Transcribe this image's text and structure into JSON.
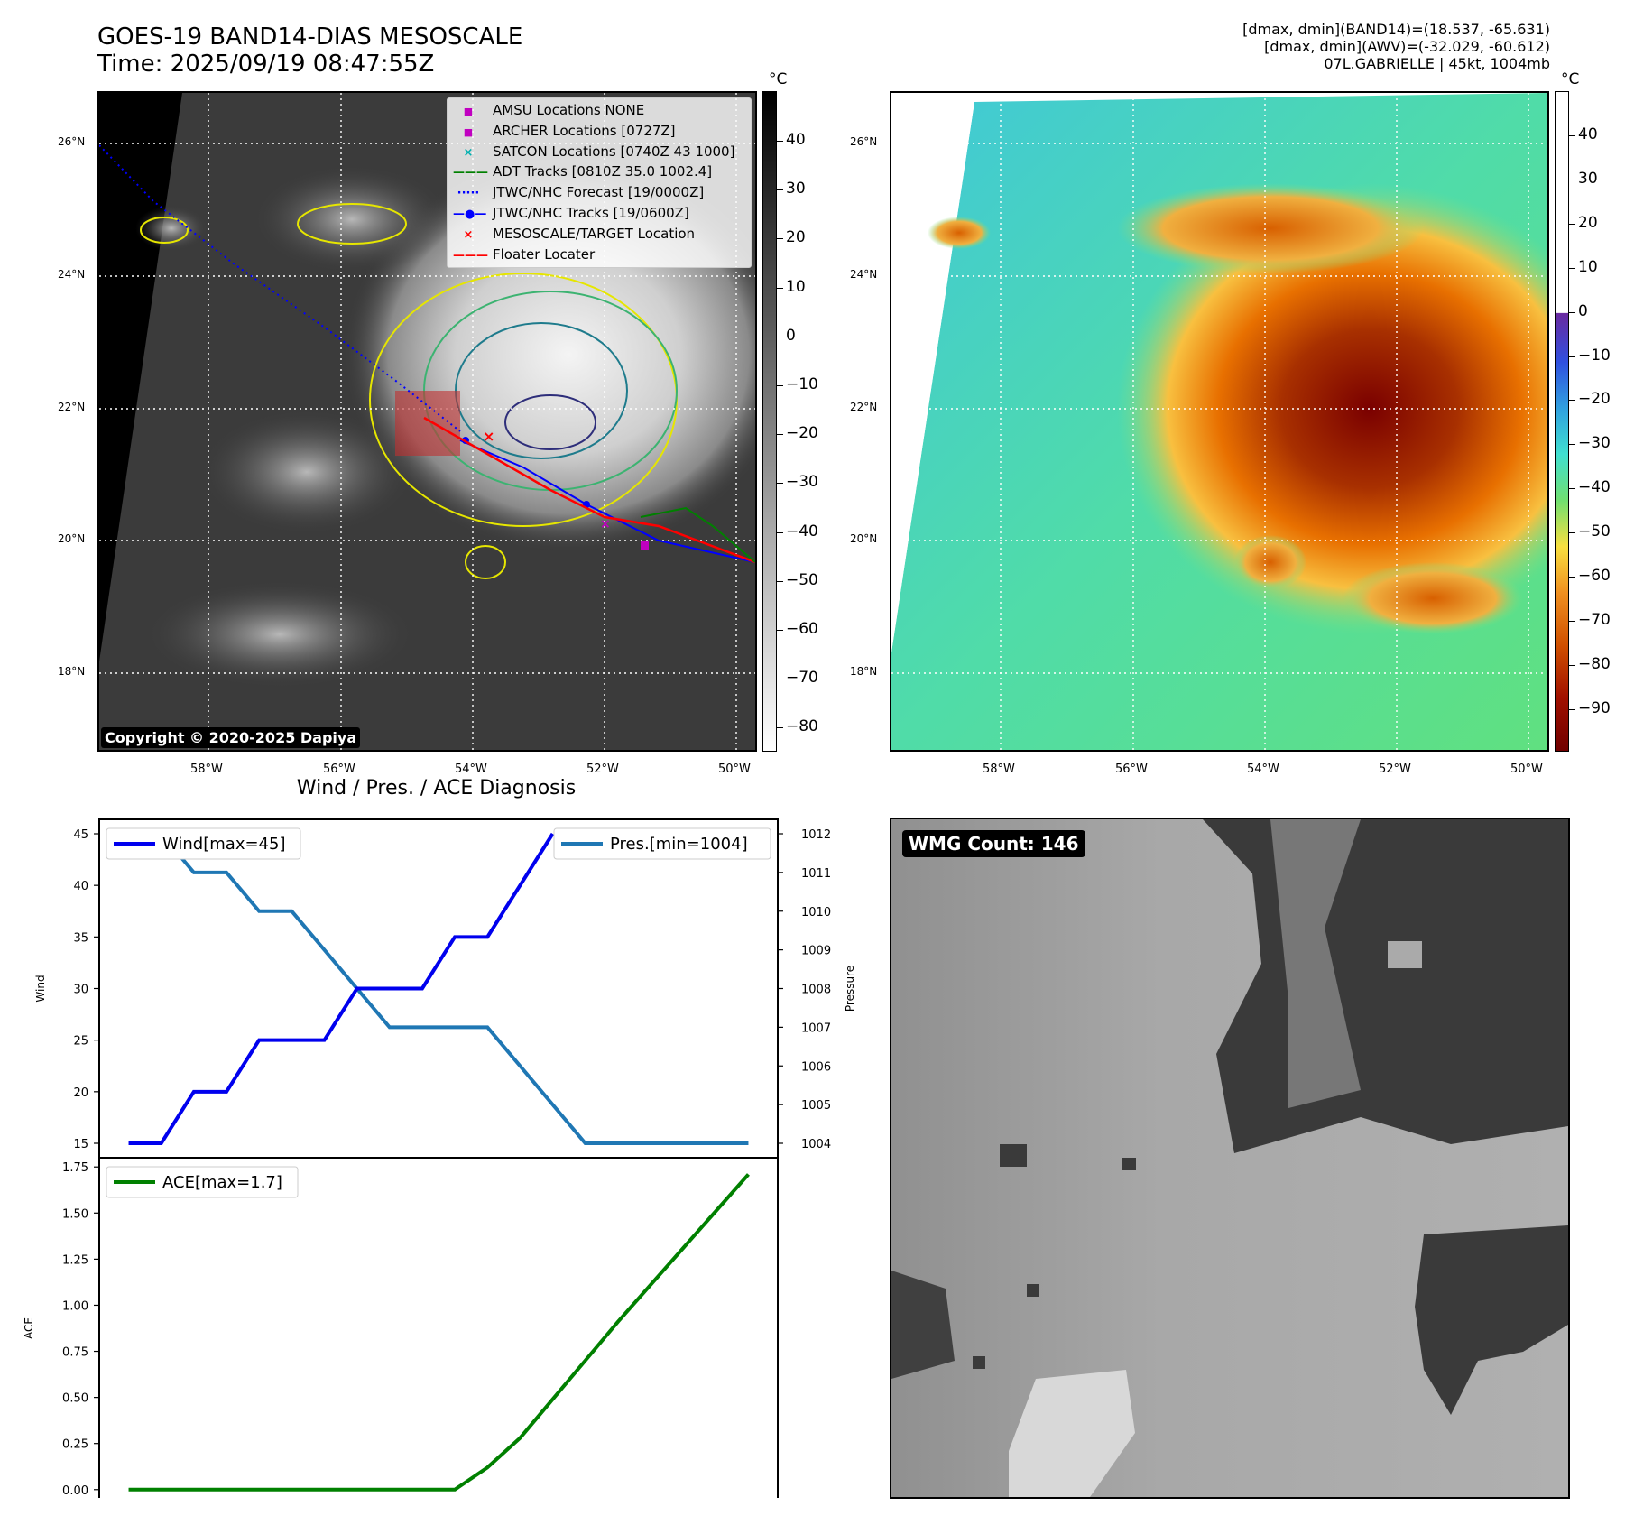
{
  "header": {
    "title_line1": "GOES-19 BAND14-DIAS MESOSCALE",
    "title_line2": "Time: 2025/09/19 08:47:55Z",
    "right_line1": "[dmax, dmin](BAND14)=(18.537, -65.631)",
    "right_line2": "[dmax, dmin](AWV)=(-32.029, -60.612)",
    "right_line3": "07L.GABRIELLE | 45kt, 1004mb"
  },
  "map_common": {
    "lat_labels": [
      "26°N",
      "24°N",
      "22°N",
      "20°N",
      "18°N"
    ],
    "lon_labels": [
      "58°W",
      "56°W",
      "54°W",
      "52°W",
      "50°W"
    ],
    "unit": "°C"
  },
  "ir_panel": {
    "colorbar_ticks": [
      "40",
      "30",
      "20",
      "10",
      "0",
      "−10",
      "−20",
      "−30",
      "−40",
      "−50",
      "−60",
      "−70",
      "−80"
    ],
    "copyright": "Copyright © 2020-2025 Dapiya",
    "legend": [
      {
        "label": "AMSU Locations NONE",
        "color": "#c000c0",
        "marker": "square"
      },
      {
        "label": "ARCHER Locations [0727Z]",
        "color": "#c000c0",
        "marker": "square"
      },
      {
        "label": "SATCON Locations [0740Z 43 1000]",
        "color": "#00b0b0",
        "marker": "x"
      },
      {
        "label": "ADT Tracks [0810Z 35.0 1002.4]",
        "color": "#008000",
        "marker": "line"
      },
      {
        "label": "JTWC/NHC Forecast [19/0000Z]",
        "color": "#0000ff",
        "marker": "dotted"
      },
      {
        "label": "JTWC/NHC Tracks [19/0600Z]",
        "color": "#0000ff",
        "marker": "line-dot"
      },
      {
        "label": "MESOSCALE/TARGET Location",
        "color": "#ff0000",
        "marker": "x"
      },
      {
        "label": "Floater Locater",
        "color": "#ff0000",
        "marker": "line"
      }
    ]
  },
  "awv_panel": {
    "colorbar_ticks": [
      "40",
      "30",
      "20",
      "10",
      "0",
      "−10",
      "−20",
      "−30",
      "−40",
      "−50",
      "−60",
      "−70",
      "−80",
      "−90"
    ]
  },
  "wmg_panel": {
    "label": "WMG Count: 146"
  },
  "diag_panel": {
    "title": "Wind / Pres. / ACE Diagnosis"
  },
  "chart_data": [
    {
      "type": "line",
      "title": "Wind / Pres. / ACE Diagnosis",
      "xlabel": "",
      "ylabel": "Wind",
      "ylabel_right": "Pressure",
      "ylim": [
        15,
        45
      ],
      "ylim_right": [
        1004,
        1012
      ],
      "yticks": [
        "45",
        "40",
        "35",
        "30",
        "25",
        "20",
        "15"
      ],
      "yticks_right": [
        "1012",
        "1011",
        "1010",
        "1009",
        "1008",
        "1007",
        "1006",
        "1005",
        "1004"
      ],
      "grid": false,
      "series": [
        {
          "name": "Wind[max=45]",
          "axis": "left",
          "color": "#0000ee",
          "legend": "upper-left",
          "x": [
            0,
            1,
            2,
            3,
            4,
            5,
            6,
            7,
            8,
            9,
            10,
            11,
            12,
            13
          ],
          "values": [
            15,
            15,
            20,
            20,
            25,
            25,
            25,
            30,
            30,
            30,
            35,
            35,
            40,
            45
          ]
        },
        {
          "name": "Pres.[min=1004]",
          "axis": "right",
          "color": "#1f77b4",
          "legend": "upper-right",
          "x": [
            0,
            1,
            2,
            3,
            4,
            5,
            6,
            7,
            8,
            9,
            10,
            11,
            12,
            13,
            14,
            15,
            16,
            17,
            18,
            19
          ],
          "values": [
            1012,
            1012,
            1011,
            1011,
            1010,
            1010,
            1009,
            1008,
            1007,
            1007,
            1007,
            1007,
            1006,
            1005,
            1004,
            1004,
            1004,
            1004,
            1004,
            1004
          ]
        }
      ]
    },
    {
      "type": "line",
      "xlabel": "",
      "ylabel": "ACE",
      "ylim": [
        -0.05,
        1.8
      ],
      "yticks": [
        "1.75",
        "1.50",
        "1.25",
        "1.00",
        "0.75",
        "0.50",
        "0.25",
        "0.00"
      ],
      "grid": false,
      "series": [
        {
          "name": "ACE[max=1.7]",
          "color": "#008000",
          "legend": "upper-left",
          "x": [
            0,
            1,
            2,
            3,
            4,
            5,
            6,
            7,
            8,
            9,
            10,
            11,
            12,
            13,
            14,
            15,
            16,
            17,
            18,
            19
          ],
          "values": [
            0,
            0,
            0,
            0,
            0,
            0,
            0,
            0,
            0,
            0,
            0,
            0.12,
            0.28,
            0.49,
            0.7,
            0.91,
            1.11,
            1.31,
            1.51,
            1.71
          ]
        }
      ]
    }
  ]
}
